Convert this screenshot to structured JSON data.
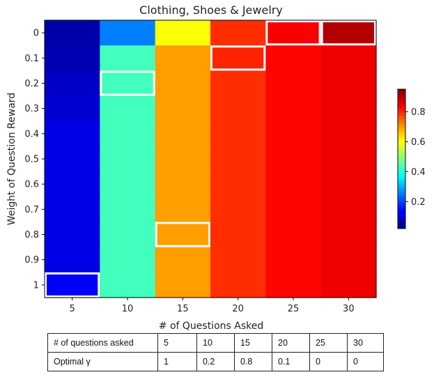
{
  "chart_data": {
    "type": "heatmap",
    "title": "Clothing, Shoes & Jewelry",
    "xlabel": "# of Questions Asked",
    "ylabel": "Weight of Question Reward",
    "x": [
      "5",
      "10",
      "15",
      "20",
      "25",
      "30"
    ],
    "y": [
      "0",
      "0.1",
      "0.2",
      "0.3",
      "0.4",
      "0.5",
      "0.6",
      "0.7",
      "0.8",
      "0.9",
      "1"
    ],
    "values": [
      [
        0.04,
        0.25,
        0.62,
        0.83,
        0.88,
        0.95
      ],
      [
        0.05,
        0.44,
        0.72,
        0.84,
        0.87,
        0.89
      ],
      [
        0.07,
        0.44,
        0.72,
        0.83,
        0.87,
        0.89
      ],
      [
        0.08,
        0.44,
        0.72,
        0.83,
        0.87,
        0.89
      ],
      [
        0.1,
        0.44,
        0.72,
        0.83,
        0.87,
        0.89
      ],
      [
        0.1,
        0.44,
        0.72,
        0.83,
        0.87,
        0.89
      ],
      [
        0.1,
        0.44,
        0.72,
        0.83,
        0.87,
        0.89
      ],
      [
        0.1,
        0.44,
        0.72,
        0.83,
        0.87,
        0.89
      ],
      [
        0.1,
        0.44,
        0.72,
        0.83,
        0.87,
        0.89
      ],
      [
        0.1,
        0.44,
        0.72,
        0.83,
        0.87,
        0.89
      ],
      [
        0.12,
        0.44,
        0.72,
        0.83,
        0.87,
        0.89
      ]
    ],
    "highlighted": [
      {
        "x": "5",
        "y": "1"
      },
      {
        "x": "10",
        "y": "0.2"
      },
      {
        "x": "15",
        "y": "0.8"
      },
      {
        "x": "20",
        "y": "0.1"
      },
      {
        "x": "25",
        "y": "0"
      },
      {
        "x": "30",
        "y": "0"
      }
    ],
    "colormap": "jet",
    "colorbar": {
      "range": [
        0.02,
        0.95
      ],
      "ticks": [
        "0.2",
        "0.4",
        "0.6",
        "0.8"
      ]
    },
    "highlight_color": "#ffffff"
  },
  "table": {
    "rows": [
      {
        "label": "# of questions asked",
        "values": [
          "5",
          "10",
          "15",
          "20",
          "25",
          "30"
        ]
      },
      {
        "label": "Optimal γ",
        "values": [
          "1",
          "0.2",
          "0.8",
          "0.1",
          "0",
          "0"
        ]
      }
    ]
  }
}
